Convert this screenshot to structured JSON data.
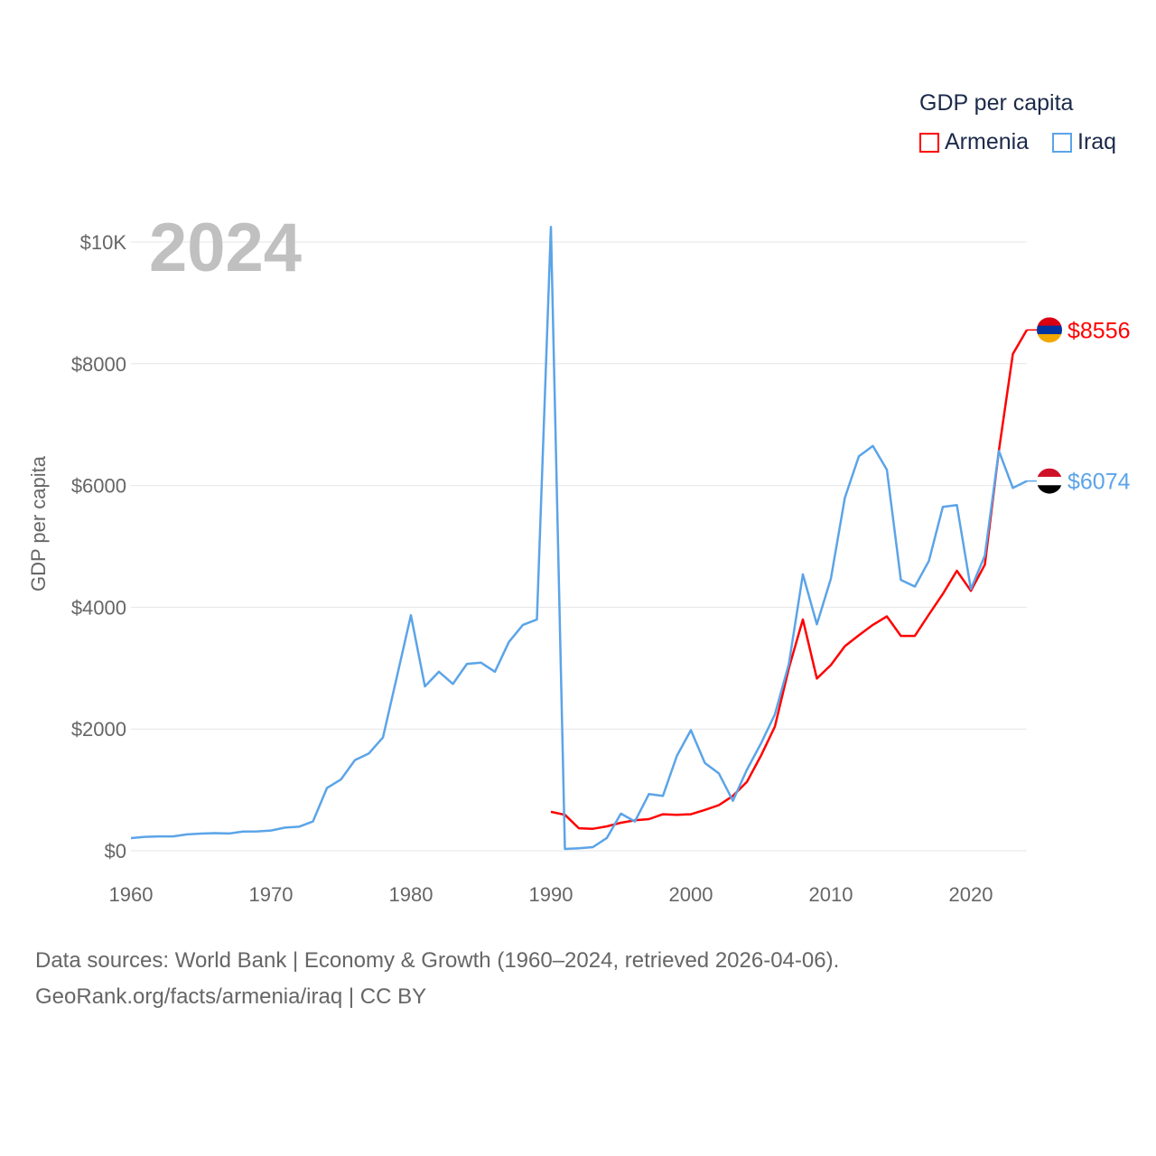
{
  "chart_data": {
    "type": "line",
    "title": "2024",
    "ylabel": "GDP per capita",
    "xlabel": "",
    "xlim": [
      1960,
      2024
    ],
    "ylim": [
      0,
      10000
    ],
    "x_ticks": [
      "1960",
      "1970",
      "1980",
      "1990",
      "2000",
      "2010",
      "2020"
    ],
    "y_ticks": [
      "$0",
      "$2000",
      "$4000",
      "$6000",
      "$8000",
      "$10K"
    ],
    "legend": {
      "title": "GDP per capita",
      "placement": "top-right"
    },
    "series": [
      {
        "name": "Armenia",
        "color": "#ff0000",
        "end_label": "$8556",
        "start_year": 1990,
        "values": [
          640,
          590,
          370,
          360,
          400,
          460,
          500,
          520,
          600,
          590,
          600,
          670,
          750,
          900,
          1130,
          1560,
          2040,
          3000,
          3800,
          2830,
          3050,
          3360,
          3540,
          3710,
          3850,
          3530,
          3530,
          3880,
          4220,
          4600,
          4270,
          4700,
          6570,
          8160,
          8556
        ]
      },
      {
        "name": "Iraq",
        "color": "#5ba4e8",
        "end_label": "$6074",
        "start_year": 1960,
        "values": [
          208,
          228,
          236,
          236,
          268,
          282,
          290,
          284,
          316,
          318,
          332,
          380,
          395,
          480,
          1030,
          1170,
          1490,
          1600,
          1860,
          2860,
          3870,
          2700,
          2940,
          2740,
          3070,
          3090,
          2940,
          3430,
          3710,
          3800,
          10250,
          30,
          40,
          60,
          210,
          610,
          480,
          930,
          900,
          1560,
          1980,
          1440,
          1270,
          820,
          1330,
          1760,
          2240,
          3070,
          4540,
          3720,
          4470,
          5800,
          6480,
          6650,
          6260,
          4450,
          4340,
          4760,
          5650,
          5680,
          4300,
          4850,
          6570,
          5960,
          6074
        ]
      }
    ]
  },
  "footer": {
    "line1": "Data sources: World Bank | Economy & Growth (1960–2024, retrieved 2026-04-06).",
    "line2": "GeoRank.org/facts/armenia/iraq | CC BY"
  }
}
